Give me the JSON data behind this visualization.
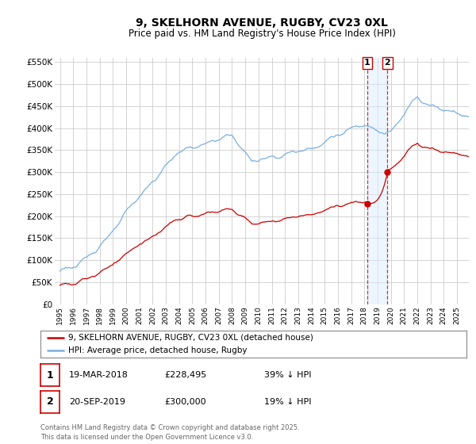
{
  "title": "9, SKELHORN AVENUE, RUGBY, CV23 0XL",
  "subtitle": "Price paid vs. HM Land Registry's House Price Index (HPI)",
  "legend_line1": "9, SKELHORN AVENUE, RUGBY, CV23 0XL (detached house)",
  "legend_line2": "HPI: Average price, detached house, Rugby",
  "transaction1_label": "1",
  "transaction1_date": "19-MAR-2018",
  "transaction1_price": "£228,495",
  "transaction1_hpi": "39% ↓ HPI",
  "transaction2_label": "2",
  "transaction2_date": "20-SEP-2019",
  "transaction2_price": "£300,000",
  "transaction2_hpi": "19% ↓ HPI",
  "footer": "Contains HM Land Registry data © Crown copyright and database right 2025.\nThis data is licensed under the Open Government Licence v3.0.",
  "hpi_color": "#7aafe0",
  "property_color": "#cc0000",
  "vline_color": "#cc0000",
  "background_color": "#ffffff",
  "grid_color": "#cccccc",
  "ylim": [
    0,
    560000
  ],
  "yticks": [
    0,
    50000,
    100000,
    150000,
    200000,
    250000,
    300000,
    350000,
    400000,
    450000,
    500000,
    550000
  ],
  "transaction1_x": 2018.21,
  "transaction2_x": 2019.75,
  "transaction1_price_val": 228495,
  "transaction2_price_val": 300000
}
